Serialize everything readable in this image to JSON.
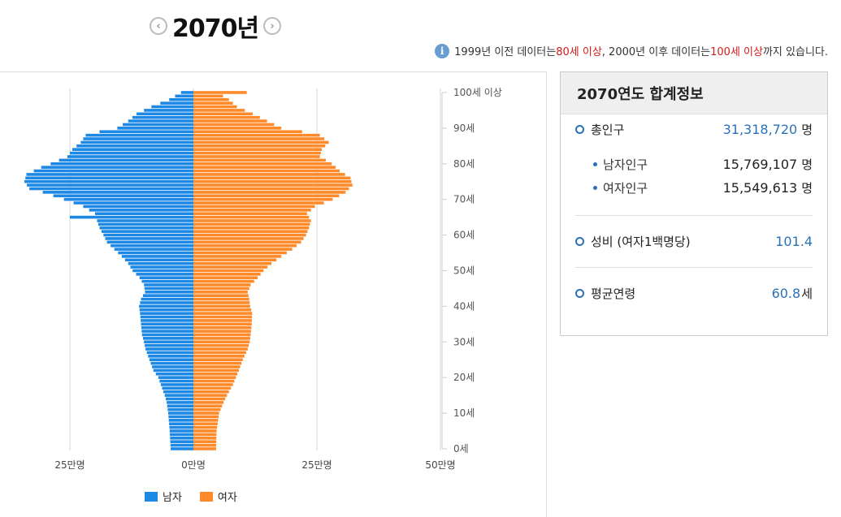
{
  "header": {
    "year": "2070년",
    "prev_icon": "chevron-left-icon",
    "next_icon": "chevron-right-icon"
  },
  "notice": {
    "info_icon": "i",
    "part1": "1999년 이전 데이터는 ",
    "hl1": "80세 이상",
    "part2": ", 2000년 이후 데이터는 ",
    "hl2": "100세 이상",
    "part3": "까지 있습니다."
  },
  "legend": {
    "male": "남자",
    "female": "여자",
    "male_color": "#1e88e5",
    "female_color": "#ff8a2a"
  },
  "panel": {
    "title": "2070연도 합계정보",
    "total_label": "총인구",
    "total_value": "31,318,720",
    "total_unit": "명",
    "male_label": "남자인구",
    "male_value": "15,769,107",
    "male_unit": "명",
    "female_label": "여자인구",
    "female_value": "15,549,613",
    "female_unit": "명",
    "ratio_label": "성비 (여자1백명당)",
    "ratio_value": "101.4",
    "age_label": "평균연령",
    "age_value": "60.8",
    "age_unit": "세"
  },
  "chart_data": {
    "type": "bar",
    "orientation": "horizontal-pyramid",
    "x_ticks": [
      "25만명",
      "0만명",
      "25만명",
      "50만명"
    ],
    "y_ticks": [
      "0세",
      "10세",
      "20세",
      "30세",
      "40세",
      "50세",
      "60세",
      "70세",
      "80세",
      "90세",
      "100세 이상"
    ],
    "series": [
      {
        "name": "남자",
        "color": "#1e88e5",
        "anchors": [
          [
            0,
            4.6
          ],
          [
            5,
            4.8
          ],
          [
            10,
            5.1
          ],
          [
            13,
            5.4
          ],
          [
            15,
            5.8
          ],
          [
            18,
            6.6
          ],
          [
            20,
            7.1
          ],
          [
            22,
            8.1
          ],
          [
            25,
            8.9
          ],
          [
            28,
            9.7
          ],
          [
            30,
            10.0
          ],
          [
            32,
            10.4
          ],
          [
            35,
            10.6
          ],
          [
            38,
            10.8
          ],
          [
            40,
            11.0
          ],
          [
            42,
            10.6
          ],
          [
            44,
            9.8
          ],
          [
            46,
            10.0
          ],
          [
            48,
            10.9
          ],
          [
            50,
            12.3
          ],
          [
            52,
            13.2
          ],
          [
            54,
            14.5
          ],
          [
            56,
            16.0
          ],
          [
            58,
            17.5
          ],
          [
            60,
            18.2
          ],
          [
            62,
            19.0
          ],
          [
            64,
            19.5
          ],
          [
            65,
            25.0
          ],
          [
            66,
            19.9
          ],
          [
            68,
            22.3
          ],
          [
            70,
            26.2
          ],
          [
            72,
            30.5
          ],
          [
            73,
            33.2
          ],
          [
            75,
            34.2
          ],
          [
            77,
            33.8
          ],
          [
            79,
            30.8
          ],
          [
            80,
            28.9
          ],
          [
            82,
            25.5
          ],
          [
            84,
            24.5
          ],
          [
            86,
            22.8
          ],
          [
            88,
            21.8
          ],
          [
            89,
            19.0
          ],
          [
            90,
            15.4
          ],
          [
            92,
            13.2
          ],
          [
            94,
            11.5
          ],
          [
            96,
            8.5
          ],
          [
            98,
            4.9
          ],
          [
            100,
            2.5
          ],
          [
            101,
            0.8
          ]
        ]
      },
      {
        "name": "여자",
        "color": "#ff8a2a",
        "anchors": [
          [
            0,
            4.6
          ],
          [
            5,
            4.7
          ],
          [
            10,
            5.2
          ],
          [
            13,
            6.1
          ],
          [
            15,
            6.8
          ],
          [
            18,
            8.0
          ],
          [
            20,
            8.6
          ],
          [
            22,
            9.2
          ],
          [
            25,
            10.0
          ],
          [
            28,
            11.0
          ],
          [
            30,
            11.4
          ],
          [
            32,
            11.6
          ],
          [
            35,
            11.8
          ],
          [
            38,
            11.9
          ],
          [
            40,
            11.5
          ],
          [
            42,
            11.3
          ],
          [
            44,
            11.0
          ],
          [
            46,
            11.6
          ],
          [
            48,
            13.0
          ],
          [
            50,
            14.2
          ],
          [
            52,
            15.8
          ],
          [
            54,
            17.8
          ],
          [
            56,
            20.0
          ],
          [
            58,
            21.8
          ],
          [
            60,
            22.8
          ],
          [
            62,
            23.4
          ],
          [
            64,
            23.8
          ],
          [
            66,
            23.0
          ],
          [
            68,
            24.6
          ],
          [
            70,
            28.2
          ],
          [
            72,
            30.8
          ],
          [
            74,
            32.2
          ],
          [
            76,
            31.8
          ],
          [
            78,
            29.6
          ],
          [
            80,
            28.0
          ],
          [
            82,
            25.6
          ],
          [
            84,
            26.0
          ],
          [
            86,
            27.4
          ],
          [
            88,
            25.6
          ],
          [
            89,
            22.0
          ],
          [
            90,
            17.8
          ],
          [
            92,
            14.9
          ],
          [
            94,
            12.0
          ],
          [
            96,
            8.8
          ],
          [
            98,
            7.2
          ],
          [
            99,
            6.0
          ],
          [
            100,
            10.8
          ],
          [
            101,
            1.0
          ]
        ]
      }
    ],
    "value_unit": "만명",
    "age_range": [
      0,
      100
    ],
    "legend_position": "bottom",
    "grid": true
  }
}
